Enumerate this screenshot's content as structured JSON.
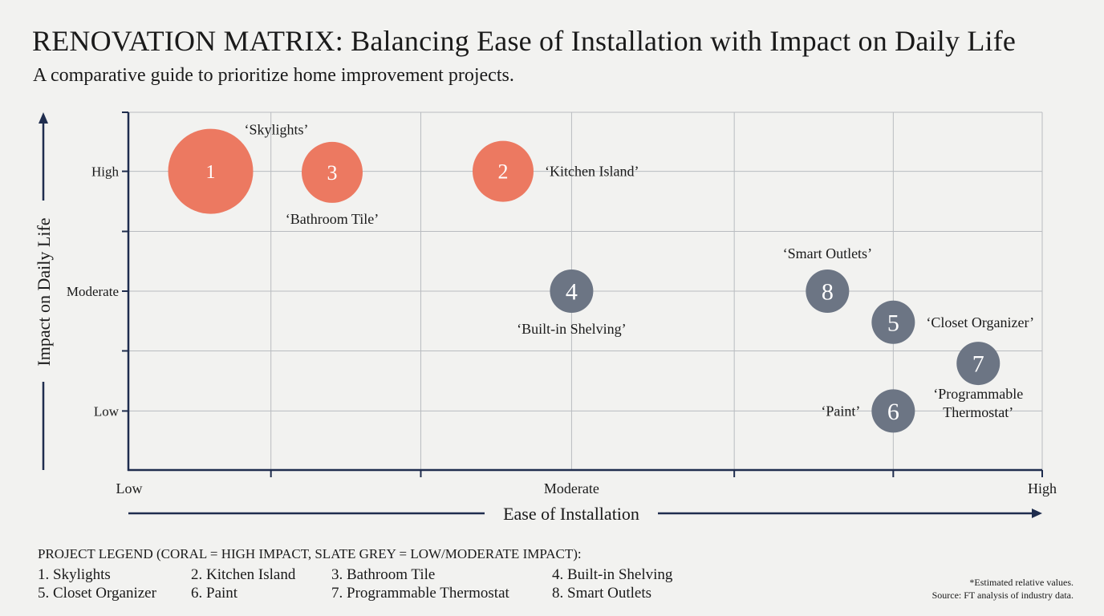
{
  "title": "RENOVATION MATRIX: Balancing Ease of Installation with Impact on Daily Life",
  "subtitle": "A comparative guide to prioritize home improvement projects.",
  "colors": {
    "high_impact": "#ec7961",
    "low_moderate_impact": "#6c7584",
    "axis": "#1f2d4e",
    "grid": "#b9bcc0",
    "background": "#f2f2f0"
  },
  "chart_data": {
    "type": "scatter",
    "xlabel": "Ease of Installation",
    "ylabel": "Impact on Daily Life",
    "x_tick_labels": [
      "Low",
      "Moderate",
      "High"
    ],
    "y_tick_labels": [
      "Low",
      "Moderate",
      "High"
    ],
    "xlim": [
      0,
      1
    ],
    "ylim": [
      0,
      1
    ],
    "grid": true,
    "points": [
      {
        "id": "1",
        "label": "‘Skylights’",
        "x": 0.09,
        "y": 0.835,
        "size": "large",
        "group": "high_impact",
        "label_pos": "upper-right"
      },
      {
        "id": "2",
        "label": "‘Kitchen Island’",
        "x": 0.41,
        "y": 0.835,
        "size": "medium",
        "group": "high_impact",
        "label_pos": "right"
      },
      {
        "id": "3",
        "label": "‘Bathroom Tile’",
        "x": 0.223,
        "y": 0.832,
        "size": "medium",
        "group": "high_impact",
        "label_pos": "below"
      },
      {
        "id": "4",
        "label": "‘Built-in Shelving’",
        "x": 0.485,
        "y": 0.5,
        "size": "small",
        "group": "low_moderate_impact",
        "label_pos": "below"
      },
      {
        "id": "5",
        "label": "‘Closet Organizer’",
        "x": 0.837,
        "y": 0.413,
        "size": "small",
        "group": "low_moderate_impact",
        "label_pos": "right"
      },
      {
        "id": "6",
        "label": "‘Paint’",
        "x": 0.837,
        "y": 0.165,
        "size": "small",
        "group": "low_moderate_impact",
        "label_pos": "left"
      },
      {
        "id": "7",
        "label": "‘Programmable Thermostat’",
        "x": 0.93,
        "y": 0.298,
        "size": "small",
        "group": "low_moderate_impact",
        "label_pos": "below"
      },
      {
        "id": "8",
        "label": "‘Smart Outlets’",
        "x": 0.765,
        "y": 0.5,
        "size": "small",
        "group": "low_moderate_impact",
        "label_pos": "above"
      }
    ]
  },
  "legend": {
    "title": "PROJECT LEGEND (CORAL = HIGH IMPACT, SLATE GREY = LOW/MODERATE IMPACT):",
    "items": [
      "1. Skylights",
      "2. Kitchen Island",
      "3. Bathroom Tile",
      "4. Built-in Shelving",
      "5. Closet Organizer",
      "6. Paint",
      "7. Programmable Thermostat",
      "8. Smart Outlets"
    ]
  },
  "notes": {
    "estimate": "*Estimated relative values.",
    "source": "Source: FT analysis of industry data."
  }
}
